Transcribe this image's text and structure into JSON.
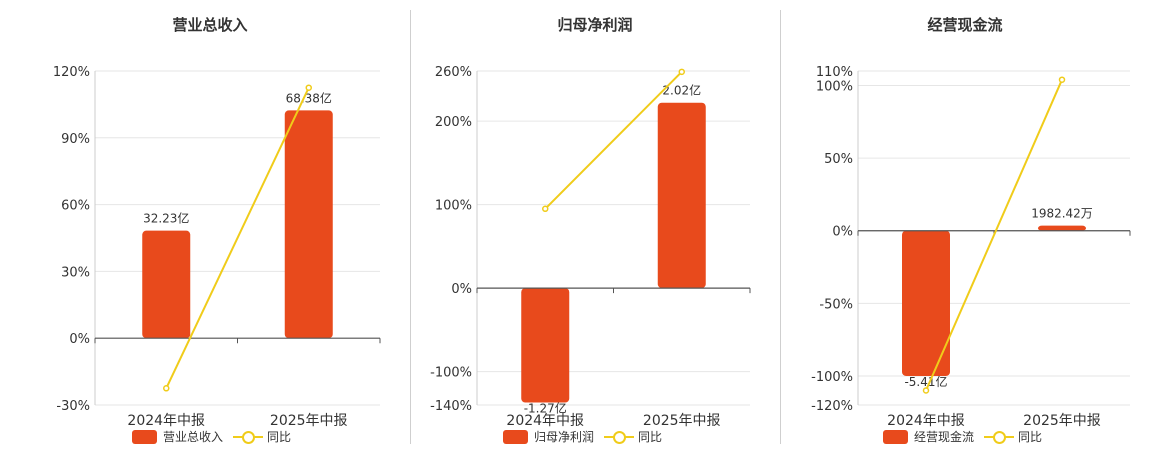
{
  "colors": {
    "bar": "#e84a1c",
    "line": "#f0cc1a",
    "grid": "#e6e6e6",
    "axis": "#555555"
  },
  "chart_data": [
    {
      "type": "bar",
      "title": "营业总收入",
      "categories": [
        "2024年中报",
        "2025年中报"
      ],
      "series": [
        {
          "name": "营业总收入",
          "kind": "bar",
          "values": [
            32.23,
            68.38
          ],
          "labels": [
            "32.23亿",
            "68.38亿"
          ],
          "bar_pct": [
            0,
            0
          ]
        },
        {
          "name": "同比",
          "kind": "line",
          "values": [
            -22.5,
            112.5
          ]
        }
      ],
      "yticks": [
        -30,
        0,
        30,
        60,
        90,
        120
      ],
      "ytick_labels": [
        "-30%",
        "0%",
        "30%",
        "60%",
        "90%",
        "120%"
      ],
      "ylim": [
        -30,
        120
      ],
      "bar_plot_values": [
        48.3,
        102.3
      ],
      "grid": true,
      "legend_position": "bottom"
    },
    {
      "type": "bar",
      "title": "归母净利润",
      "categories": [
        "2024年中报",
        "2025年中报"
      ],
      "series": [
        {
          "name": "归母净利润",
          "kind": "bar",
          "values": [
            -1.27,
            2.02
          ],
          "labels": [
            "-1.27亿",
            "2.02亿"
          ]
        },
        {
          "name": "同比",
          "kind": "line",
          "values": [
            95,
            259
          ]
        }
      ],
      "yticks": [
        -140,
        -100,
        0,
        100,
        200,
        260
      ],
      "ytick_labels": [
        "-140%",
        "-100%",
        "0%",
        "100%",
        "200%",
        "260%"
      ],
      "ylim": [
        -140,
        260
      ],
      "bar_plot_values": [
        -137,
        222
      ],
      "grid": true,
      "legend_position": "bottom"
    },
    {
      "type": "bar",
      "title": "经营现金流",
      "categories": [
        "2024年中报",
        "2025年中报"
      ],
      "series": [
        {
          "name": "经营现金流",
          "kind": "bar",
          "values": [
            -5.41,
            0.198242
          ],
          "labels": [
            "-5.41亿",
            "1982.42万"
          ]
        },
        {
          "name": "同比",
          "kind": "line",
          "values": [
            -110,
            104
          ]
        }
      ],
      "yticks": [
        -120,
        -100,
        -50,
        0,
        50,
        100,
        110
      ],
      "ytick_labels": [
        "-120%",
        "-100%",
        "-50%",
        "0%",
        "50%",
        "100%",
        "110%"
      ],
      "ylim": [
        -120,
        110
      ],
      "bar_plot_values": [
        -100,
        3.5
      ],
      "grid": true,
      "legend_position": "bottom"
    }
  ],
  "legend": [
    {
      "bar": "营业总收入",
      "line": "同比"
    },
    {
      "bar": "归母净利润",
      "line": "同比"
    },
    {
      "bar": "经营现金流",
      "line": "同比"
    }
  ]
}
